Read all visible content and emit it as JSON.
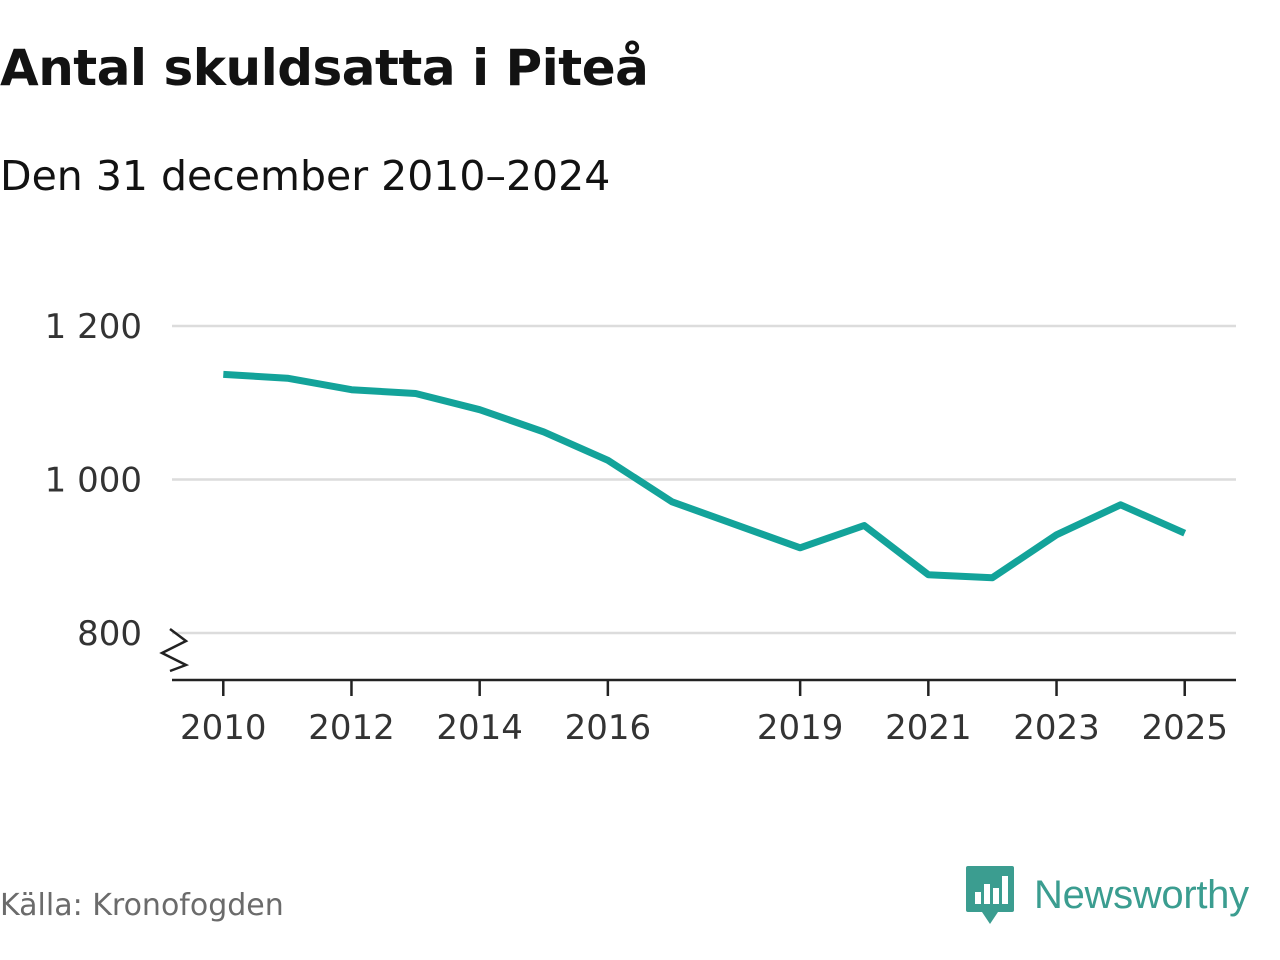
{
  "chart_data": {
    "type": "line",
    "title": "Antal skuldsatta i Piteå",
    "subtitle": "Den 31 december 2010–2024",
    "xlabel": "",
    "ylabel": "",
    "x": [
      2010,
      2011,
      2012,
      2013,
      2014,
      2015,
      2016,
      2017,
      2019,
      2020,
      2021,
      2022,
      2023,
      2024,
      2025
    ],
    "series": [
      {
        "name": "Antal skuldsatta",
        "color": "#13a39a",
        "values": [
          1137,
          1132,
          1117,
          1112,
          1091,
          1062,
          1025,
          971,
          911,
          940,
          876,
          872,
          928,
          967,
          930
        ]
      }
    ],
    "xticks": [
      2010,
      2012,
      2014,
      2016,
      2019,
      2021,
      2023,
      2025
    ],
    "xtick_labels": [
      "2010",
      "2012",
      "2014",
      "2016",
      "2019",
      "2021",
      "2023",
      "2025"
    ],
    "yticks": [
      800,
      1000,
      1200
    ],
    "ytick_labels": [
      "800",
      "1 000",
      "1 200"
    ],
    "ylim": [
      740,
      1200
    ],
    "xlim": [
      2009.2,
      2025.8
    ],
    "grid": true,
    "axis_break": true
  },
  "footer": {
    "source": "Källa: Kronofogden",
    "brand": "Newsworthy",
    "brand_color": "#3b9d90",
    "brand_icon": "newsworthy-logo-icon"
  }
}
